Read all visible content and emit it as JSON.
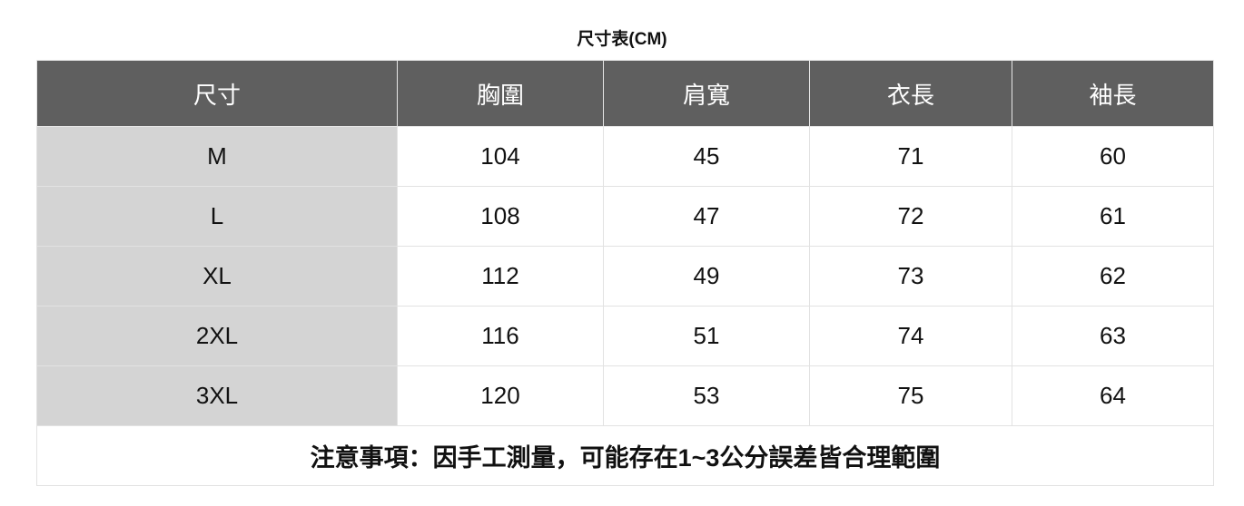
{
  "title": "尺寸表(CM)",
  "headers": [
    "尺寸",
    "胸圍",
    "肩寬",
    "衣長",
    "袖長"
  ],
  "rows": [
    [
      "M",
      "104",
      "45",
      "71",
      "60"
    ],
    [
      "L",
      "108",
      "47",
      "72",
      "61"
    ],
    [
      "XL",
      "112",
      "49",
      "73",
      "62"
    ],
    [
      "2XL",
      "116",
      "51",
      "74",
      "63"
    ],
    [
      "3XL",
      "120",
      "53",
      "75",
      "64"
    ]
  ],
  "note": "注意事項：因手工測量，可能存在1~3公分誤差皆合理範圍",
  "colors": {
    "header_bg": "#5f5f5f",
    "size_col_bg": "#d4d4d4",
    "border": "#e2e2e2"
  }
}
